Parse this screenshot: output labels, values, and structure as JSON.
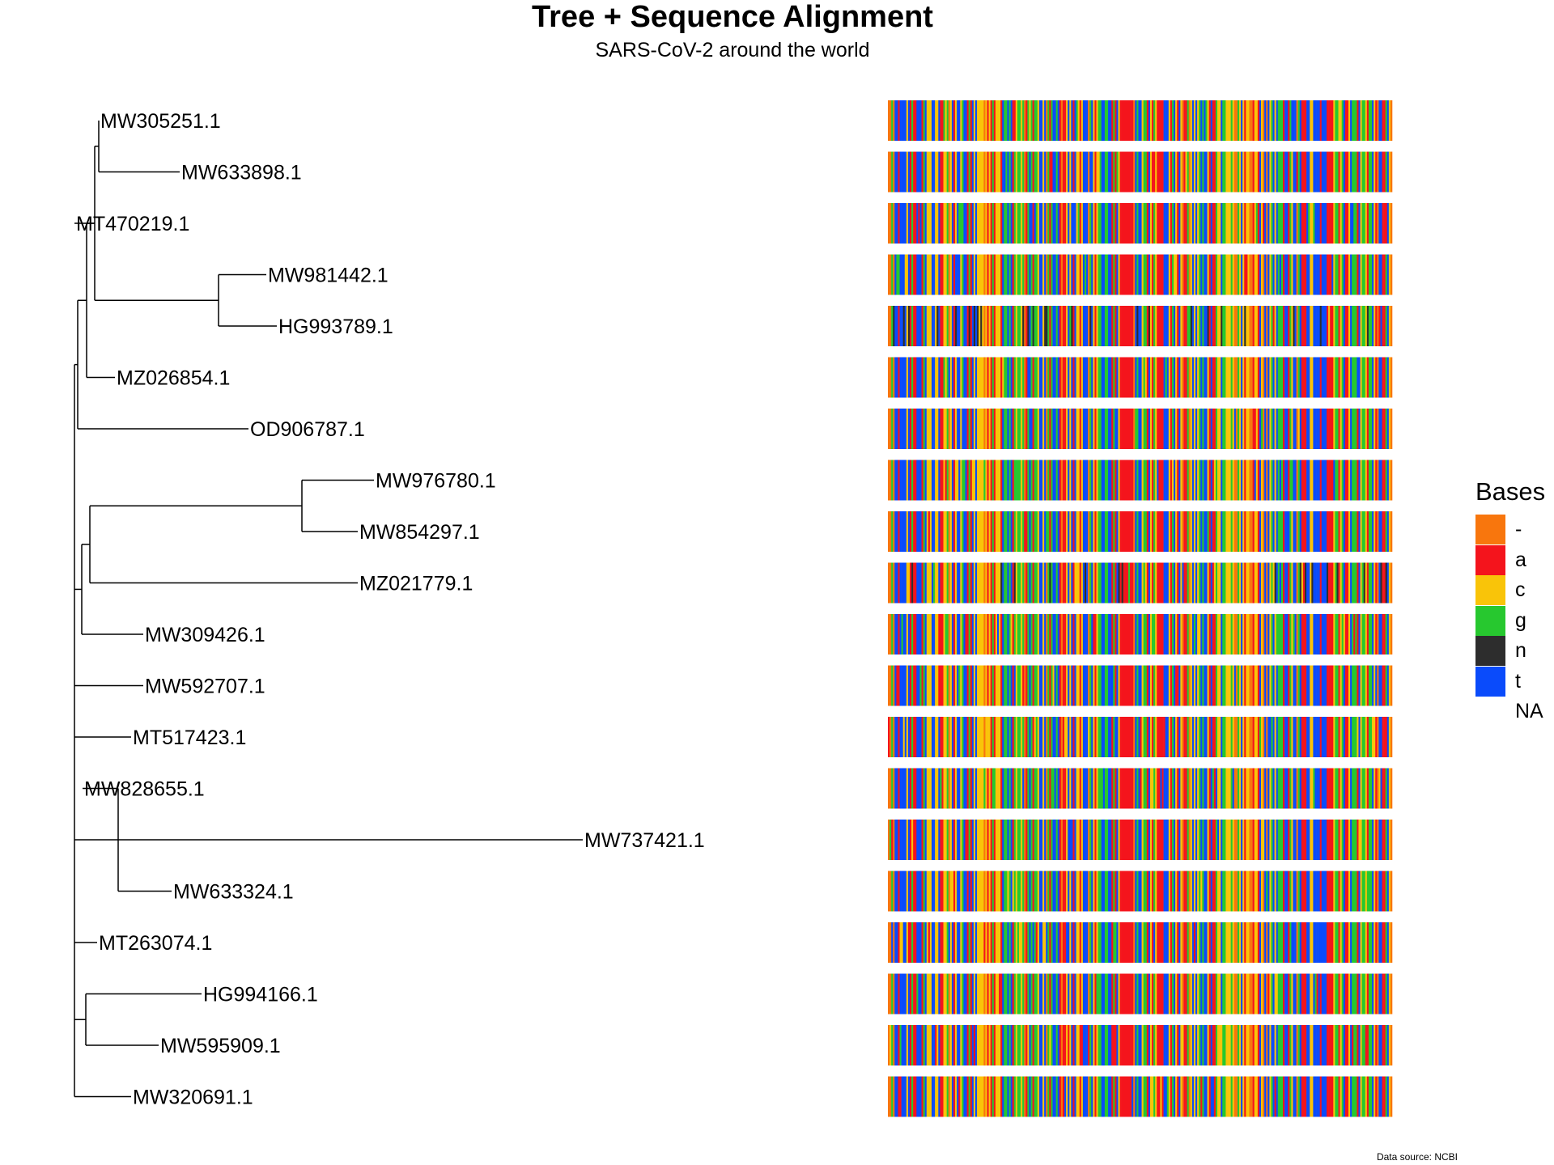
{
  "title": "Tree + Sequence Alignment",
  "subtitle": "SARS-CoV-2 around the world",
  "caption": "Data source: NCBI",
  "chart_data": {
    "type": "tree+alignment",
    "tree": {
      "tips": [
        "MW305251.1",
        "MW633898.1",
        "MT470219.1",
        "MW981442.1",
        "HG993789.1",
        "MZ026854.1",
        "OD906787.1",
        "MW976780.1",
        "MW854297.1",
        "MZ021779.1",
        "MW309426.1",
        "MW592707.1",
        "MT517423.1",
        "MW828655.1",
        "MW737421.1",
        "MW633324.1",
        "MT263074.1",
        "HG994166.1",
        "MW595909.1",
        "MW320691.1"
      ],
      "tip_depths": [
        0.03,
        0.13,
        0.0,
        0.237,
        0.25,
        0.05,
        0.215,
        0.37,
        0.35,
        0.35,
        0.085,
        0.085,
        0.07,
        0.01,
        0.628,
        0.12,
        0.028,
        0.157,
        0.104,
        0.07
      ]
    },
    "alignment": {
      "rows": [
        "MW305251.1",
        "MW633898.1",
        "MT470219.1",
        "MW981442.1",
        "HG993789.1",
        "MZ026854.1",
        "OD906787.1",
        "MW976780.1",
        "MW854297.1",
        "MZ021779.1",
        "MW309426.1",
        "MW592707.1",
        "MT517423.1",
        "MW828655.1",
        "MW737421.1",
        "MW633324.1",
        "MT263074.1",
        "HG994166.1",
        "MW595909.1",
        "MW320691.1"
      ],
      "n_rows_with_many_n": 2
    },
    "legend": {
      "title": "Bases",
      "entries": [
        {
          "label": "-",
          "color": "#F8760D"
        },
        {
          "label": "a",
          "color": "#F4141C"
        },
        {
          "label": "c",
          "color": "#F9C409"
        },
        {
          "label": "g",
          "color": "#27C82F"
        },
        {
          "label": "n",
          "color": "#2D2D2D"
        },
        {
          "label": "t",
          "color": "#0A4BFB"
        },
        {
          "label": "NA",
          "color": "none"
        }
      ]
    }
  }
}
